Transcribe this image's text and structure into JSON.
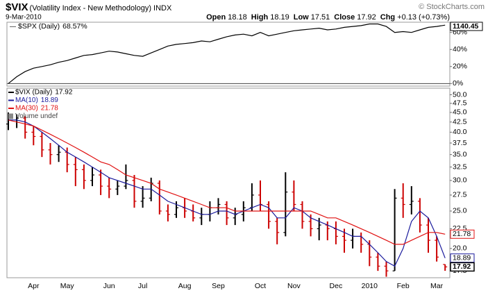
{
  "header": {
    "symbol": "$VIX",
    "description": "(Volatility Index - New Methodology) INDX",
    "date": "9-Mar-2010",
    "quote": [
      {
        "label": "Open",
        "value": 18.18
      },
      {
        "label": "High",
        "value": 18.19
      },
      {
        "label": "Low",
        "value": 17.51
      },
      {
        "label": "Close",
        "value": 17.92
      },
      {
        "label": "Chg",
        "value": "+0.13 (+0.73%)"
      }
    ],
    "credit": "© StockCharts.com"
  },
  "chart_data": [
    {
      "type": "line",
      "name": "$SPX (Daily)",
      "last_label": "68.57%",
      "last_price": 1140.45,
      "color": "#000000",
      "values": [
        0,
        8,
        14,
        18,
        20,
        22,
        25,
        27,
        30,
        33,
        34,
        36,
        38,
        37,
        35,
        33,
        32,
        36,
        40,
        44,
        46,
        47,
        48,
        50,
        49,
        52,
        55,
        57,
        58,
        56,
        60,
        56,
        58,
        60,
        62,
        63,
        64,
        65,
        63,
        64,
        66,
        67,
        68,
        70,
        70,
        67,
        60,
        61,
        60,
        63,
        66,
        67,
        68.57
      ],
      "ylim": [
        -3,
        72
      ],
      "yticks": [
        {
          "value": 0,
          "label": "0%"
        },
        {
          "value": 20,
          "label": "20%"
        },
        {
          "value": 40,
          "label": "40%"
        },
        {
          "value": 60,
          "label": "60%"
        }
      ],
      "grid": false
    },
    {
      "type": "ohlc",
      "name": "$VIX (Daily)",
      "last": 17.92,
      "up_color": "#000000",
      "down_color": "#cc0000",
      "categories": [
        null,
        null,
        null,
        "Apr",
        null,
        null,
        null,
        "May",
        null,
        null,
        null,
        null,
        "Jun",
        null,
        null,
        null,
        "Jul",
        null,
        null,
        null,
        null,
        "Aug",
        null,
        null,
        null,
        "Sep",
        null,
        null,
        null,
        null,
        "Oct",
        null,
        null,
        null,
        "Nov",
        null,
        null,
        null,
        null,
        "Dec",
        null,
        null,
        null,
        "2010",
        null,
        null,
        null,
        "Feb",
        null,
        null,
        null,
        "Mar",
        null
      ],
      "open": [
        42,
        43,
        43.5,
        40,
        39,
        36,
        35,
        35.5,
        33,
        32,
        30,
        31,
        29,
        28.5,
        29,
        30,
        26.5,
        27,
        29.5,
        25,
        24.5,
        25.5,
        25,
        24,
        24.5,
        25.5,
        26,
        24,
        24.5,
        25.5,
        27.5,
        26,
        23.5,
        22,
        28,
        26,
        23.5,
        22.5,
        23,
        22.5,
        21.5,
        21,
        21.5,
        20.5,
        19,
        18,
        17.5,
        27,
        26,
        26.5,
        23,
        21,
        18.18
      ],
      "high": [
        45,
        44.5,
        44,
        41.5,
        40,
        37.5,
        37,
        36.5,
        34.5,
        33,
        32.5,
        32,
        30.5,
        30,
        33,
        31,
        29,
        30.5,
        30,
        26,
        26.5,
        27,
        26,
        25.5,
        26.5,
        27,
        26.5,
        25.5,
        26.5,
        29.5,
        30,
        26.5,
        24,
        31.5,
        30,
        26.5,
        24.5,
        24,
        23.5,
        23.5,
        22.5,
        22.5,
        22,
        21,
        19.5,
        18.5,
        28.5,
        29.5,
        29,
        27,
        24,
        21.5,
        18.19
      ],
      "low": [
        40.5,
        41,
        38.5,
        37,
        34.5,
        33,
        33.5,
        31.5,
        29,
        28.5,
        29,
        27.5,
        27,
        27.5,
        28.5,
        25.5,
        25.5,
        26.5,
        24.5,
        23.5,
        24,
        24,
        23.5,
        23,
        23.5,
        24.5,
        23,
        23,
        23.5,
        25,
        25,
        22.5,
        20.5,
        21.5,
        25,
        22.5,
        21.5,
        21,
        21,
        20.5,
        19.5,
        20,
        19.5,
        18,
        17.5,
        16.9,
        17.5,
        24,
        24.5,
        22,
        19.5,
        18.5,
        17.51
      ],
      "close": [
        43,
        43.5,
        40,
        39,
        36,
        35,
        35.5,
        33,
        32,
        30,
        31,
        29,
        28.5,
        29,
        30,
        26.5,
        27,
        29.5,
        25,
        24.5,
        25.5,
        25,
        24,
        24.5,
        25.5,
        26,
        24,
        24.5,
        25.5,
        27.5,
        26,
        23.5,
        22,
        28,
        26,
        23.5,
        22.5,
        23,
        22.5,
        21.5,
        21,
        21.5,
        20.5,
        19,
        18,
        17.5,
        27,
        26,
        26.5,
        23,
        21,
        19,
        17.92
      ],
      "series": [
        {
          "name": "MA(10)",
          "last": 18.89,
          "color": "#1a1a9c",
          "values": [
            43,
            43,
            42.5,
            41.5,
            40,
            38.5,
            37,
            35.5,
            34.5,
            33.5,
            32.5,
            31.5,
            30.5,
            30,
            29.5,
            29,
            28.5,
            28.5,
            27.5,
            26.5,
            26,
            25.5,
            25,
            24.5,
            24.5,
            25,
            25,
            24.5,
            25,
            25.5,
            26,
            25.5,
            24,
            24,
            25.5,
            25,
            24,
            23.5,
            23,
            22.5,
            22,
            21.5,
            21.5,
            20.5,
            19.5,
            18.5,
            18,
            20,
            23.5,
            25,
            24,
            21.5,
            18.89
          ]
        },
        {
          "name": "MA(30)",
          "last": 21.78,
          "color": "#e01010",
          "values": [
            43,
            42.5,
            42,
            41.5,
            40.5,
            39.5,
            38.5,
            37.5,
            36.5,
            35.5,
            34.5,
            33.5,
            33,
            32,
            31,
            30.5,
            30,
            29.5,
            28.5,
            28,
            27.5,
            27,
            26.5,
            26,
            25.5,
            25.5,
            25.5,
            25,
            25,
            25,
            25,
            25,
            25,
            25,
            25,
            25,
            25,
            24.5,
            24,
            24,
            23.5,
            23,
            22.5,
            22,
            21.5,
            21,
            20.5,
            20.5,
            21,
            21.5,
            22,
            22,
            21.78
          ]
        }
      ],
      "volume_label": "Volume undef",
      "log": true,
      "ylim": [
        16.8,
        52
      ],
      "yticks": [
        17.5,
        {
          "value": 20,
          "label": "20.0"
        },
        22.5,
        {
          "value": 25,
          "label": "25.0"
        },
        27.5,
        {
          "value": 30,
          "label": "30.0"
        },
        32.5,
        {
          "value": 35,
          "label": "35.0"
        },
        37.5,
        {
          "value": 40,
          "label": "40.0"
        },
        42.5,
        {
          "value": 45,
          "label": "45.0"
        },
        47.5,
        {
          "value": 50,
          "label": "50.0"
        }
      ],
      "grid": false
    }
  ]
}
